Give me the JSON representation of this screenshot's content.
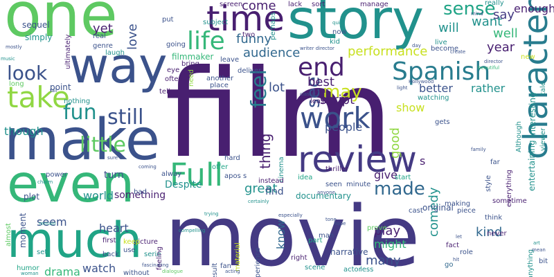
{
  "palette": {
    "dark_purple": "#481f70",
    "purple": "#443a83",
    "indigo": "#3b528b",
    "blue": "#31688e",
    "teal_blue": "#287c8e",
    "teal": "#21918c",
    "green_teal": "#20a486",
    "green": "#35b779",
    "light_green": "#5ec962",
    "lime": "#90d743",
    "yellow_green": "#c8e020",
    "background": "#ffffff"
  },
  "words": [
    {
      "text": "film",
      "color": "dark_purple"
    },
    {
      "text": "movie",
      "color": "purple"
    },
    {
      "text": "one",
      "color": "light_green"
    },
    {
      "text": "story",
      "color": "teal"
    },
    {
      "text": "make",
      "color": "indigo"
    },
    {
      "text": "way",
      "color": "indigo"
    },
    {
      "text": "even",
      "color": "green"
    },
    {
      "text": "much",
      "color": "green_teal"
    },
    {
      "text": "character",
      "color": "teal_blue"
    },
    {
      "text": "review",
      "color": "purple"
    },
    {
      "text": "Full",
      "color": "green"
    },
    {
      "text": "time",
      "color": "dark_purple"
    },
    {
      "text": "work",
      "color": "indigo"
    },
    {
      "text": "Spanish",
      "color": "teal_blue"
    },
    {
      "text": "life",
      "color": "green"
    },
    {
      "text": "take",
      "color": "lime"
    },
    {
      "text": "end",
      "color": "dark_purple"
    },
    {
      "text": "sense",
      "color": "green_teal"
    },
    {
      "text": "feel",
      "color": "teal_blue"
    },
    {
      "text": "fun",
      "color": "teal"
    },
    {
      "text": "look",
      "color": "indigo"
    },
    {
      "text": "still",
      "color": "indigo"
    },
    {
      "text": "see",
      "color": "indigo"
    },
    {
      "text": "little",
      "color": "light_green"
    },
    {
      "text": "made",
      "color": "blue"
    },
    {
      "text": "may",
      "color": "yellow_green"
    },
    {
      "text": "say",
      "color": "purple"
    },
    {
      "text": "enough",
      "color": "dark_purple"
    },
    {
      "text": "performance",
      "color": "yellow_green"
    },
    {
      "text": "audience",
      "color": "blue"
    },
    {
      "text": "come",
      "color": "dark_purple"
    },
    {
      "text": "funny",
      "color": "blue"
    },
    {
      "text": "love",
      "color": "indigo"
    },
    {
      "text": "yet",
      "color": "dark_purple"
    },
    {
      "text": "best",
      "color": "dark_purple"
    },
    {
      "text": "script",
      "color": "dark_purple"
    },
    {
      "text": "lot",
      "color": "indigo"
    },
    {
      "text": "people",
      "color": "indigo"
    },
    {
      "text": "year",
      "color": "dark_purple"
    },
    {
      "text": "well",
      "color": "green"
    },
    {
      "text": "want",
      "color": "teal"
    },
    {
      "text": "will",
      "color": "teal"
    },
    {
      "text": "better",
      "color": "indigo"
    },
    {
      "text": "rather",
      "color": "teal"
    },
    {
      "text": "great",
      "color": "teal"
    },
    {
      "text": "thing",
      "color": "dark_purple"
    },
    {
      "text": "good",
      "color": "lime"
    },
    {
      "text": "show",
      "color": "yellow_green"
    },
    {
      "text": "s",
      "color": "dark_purple"
    },
    {
      "text": "give",
      "color": "dark_purple"
    },
    {
      "text": "play",
      "color": "dark_purple"
    },
    {
      "text": "might",
      "color": "green"
    },
    {
      "text": "kind",
      "color": "blue"
    },
    {
      "text": "comedy",
      "color": "teal"
    },
    {
      "text": "many",
      "color": "indigo"
    },
    {
      "text": "know",
      "color": "blue"
    },
    {
      "text": "seem",
      "color": "indigo"
    },
    {
      "text": "heart",
      "color": "indigo"
    },
    {
      "text": "watch",
      "color": "indigo"
    },
    {
      "text": "drama",
      "color": "green"
    },
    {
      "text": "world",
      "color": "teal"
    },
    {
      "text": "Despite",
      "color": "teal"
    },
    {
      "text": "something",
      "color": "dark_purple"
    },
    {
      "text": "find",
      "color": "indigo"
    },
    {
      "text": "turn",
      "color": "indigo"
    },
    {
      "text": "though",
      "color": "teal"
    },
    {
      "text": "interesting",
      "color": "teal"
    },
    {
      "text": "entertaining",
      "color": "teal"
    },
    {
      "text": "documentary",
      "color": "teal"
    },
    {
      "text": "original",
      "color": "indigo"
    },
    {
      "text": "narrative",
      "color": "indigo"
    },
    {
      "text": "moment",
      "color": "indigo"
    },
    {
      "text": "plot",
      "color": "indigo"
    },
    {
      "text": "point",
      "color": "indigo"
    },
    {
      "text": "filmmaker",
      "color": "green"
    },
    {
      "text": "genre",
      "color": "indigo"
    },
    {
      "text": "real",
      "color": "indigo"
    },
    {
      "text": "simply",
      "color": "teal"
    },
    {
      "text": "sequel",
      "color": "indigo"
    },
    {
      "text": "ultimately",
      "color": "dark_purple"
    },
    {
      "text": "laugh",
      "color": "teal"
    },
    {
      "text": "going",
      "color": "indigo"
    },
    {
      "text": "put",
      "color": "indigo"
    },
    {
      "text": "bring",
      "color": "dark_purple"
    },
    {
      "text": "eye",
      "color": "dark_purple"
    },
    {
      "text": "often",
      "color": "dark_purple"
    },
    {
      "text": "long",
      "color": "light_green"
    },
    {
      "text": "nothing",
      "color": "teal"
    },
    {
      "text": "tell",
      "color": "dark_purple"
    },
    {
      "text": "need",
      "color": "lime"
    },
    {
      "text": "place",
      "color": "indigo"
    },
    {
      "text": "another",
      "color": "indigo"
    },
    {
      "text": "deliver",
      "color": "indigo"
    },
    {
      "text": "leave",
      "color": "indigo"
    },
    {
      "text": "two",
      "color": "dark_purple"
    },
    {
      "text": "subject",
      "color": "teal"
    },
    {
      "text": "screen",
      "color": "dark_purple"
    },
    {
      "text": "perhaps",
      "color": "teal"
    },
    {
      "text": "lack",
      "color": "dark_purple"
    },
    {
      "text": "sort",
      "color": "dark_purple"
    },
    {
      "text": "kid",
      "color": "teal"
    },
    {
      "text": "now",
      "color": "indigo"
    },
    {
      "text": "manage",
      "color": "dark_purple"
    },
    {
      "text": "really",
      "color": "teal"
    },
    {
      "text": "live",
      "color": "teal"
    },
    {
      "text": "become",
      "color": "indigo"
    },
    {
      "text": "new",
      "color": "yellow_green"
    },
    {
      "text": "star",
      "color": "dark_purple"
    },
    {
      "text": "least",
      "color": "dark_purple"
    },
    {
      "text": "hard",
      "color": "indigo"
    },
    {
      "text": "offer",
      "color": "green_teal"
    },
    {
      "text": "apos s",
      "color": "indigo"
    },
    {
      "text": "cinema",
      "color": "teal"
    },
    {
      "text": "thriller",
      "color": "dark_purple"
    },
    {
      "text": "watching",
      "color": "teal"
    },
    {
      "text": "gets",
      "color": "indigo"
    },
    {
      "text": "Although",
      "color": "teal"
    },
    {
      "text": "style",
      "color": "indigo"
    },
    {
      "text": "far",
      "color": "indigo"
    },
    {
      "text": "viewer",
      "color": "teal"
    },
    {
      "text": "tale",
      "color": "teal"
    },
    {
      "text": "power",
      "color": "indigo"
    },
    {
      "text": "bad",
      "color": "indigo"
    },
    {
      "text": "alway",
      "color": "indigo"
    },
    {
      "text": "instead",
      "color": "dark_purple"
    },
    {
      "text": "idea",
      "color": "green_teal"
    },
    {
      "text": "seen",
      "color": "indigo"
    },
    {
      "text": "minute",
      "color": "indigo"
    },
    {
      "text": "start",
      "color": "green_teal"
    },
    {
      "text": "everything",
      "color": "dark_purple"
    },
    {
      "text": "sometime",
      "color": "dark_purple"
    },
    {
      "text": "think",
      "color": "indigo"
    },
    {
      "text": "first",
      "color": "dark_purple"
    },
    {
      "text": "back",
      "color": "indigo"
    },
    {
      "text": "almost",
      "color": "light_green"
    },
    {
      "text": "set",
      "color": "teal"
    },
    {
      "text": "picture",
      "color": "dark_purple"
    },
    {
      "text": "keep",
      "color": "yellow_green"
    },
    {
      "text": "use",
      "color": "indigo"
    },
    {
      "text": "serie",
      "color": "teal"
    },
    {
      "text": "feeling",
      "color": "dark_purple"
    },
    {
      "text": "humor",
      "color": "green_teal"
    },
    {
      "text": "without",
      "color": "indigo"
    },
    {
      "text": "result",
      "color": "indigo"
    },
    {
      "text": "fan",
      "color": "indigo"
    },
    {
      "text": "material",
      "color": "yellow_green"
    },
    {
      "text": "experience",
      "color": "indigo"
    },
    {
      "text": "man",
      "color": "indigo"
    },
    {
      "text": "prove",
      "color": "light_green"
    },
    {
      "text": "cast",
      "color": "indigo"
    },
    {
      "text": "piece",
      "color": "indigo"
    },
    {
      "text": "making",
      "color": "indigo"
    },
    {
      "text": "part",
      "color": "green_teal"
    },
    {
      "text": "right",
      "color": "dark_purple"
    },
    {
      "text": "scene",
      "color": "teal"
    },
    {
      "text": "less",
      "color": "teal"
    },
    {
      "text": "actor",
      "color": "teal"
    },
    {
      "text": "fact",
      "color": "dark_purple"
    },
    {
      "text": "role",
      "color": "indigo"
    },
    {
      "text": "go",
      "color": "blue"
    },
    {
      "text": "never",
      "color": "dark_purple"
    },
    {
      "text": "anything",
      "color": "teal"
    },
    {
      "text": "bit",
      "color": "indigo"
    },
    {
      "text": "compelling",
      "color": "teal"
    },
    {
      "text": "trying",
      "color": "teal"
    },
    {
      "text": "certainly",
      "color": "teal"
    },
    {
      "text": "especially",
      "color": "indigo"
    },
    {
      "text": "hope",
      "color": "indigo"
    },
    {
      "text": "tone",
      "color": "indigo"
    },
    {
      "text": "acting",
      "color": "indigo"
    },
    {
      "text": "fascinating",
      "color": "indigo"
    },
    {
      "text": "woman",
      "color": "teal"
    },
    {
      "text": "dialogue",
      "color": "light_green"
    },
    {
      "text": "anyone",
      "color": "indigo"
    },
    {
      "text": "classic",
      "color": "indigo"
    },
    {
      "text": "family",
      "color": "indigo"
    },
    {
      "text": "coming",
      "color": "indigo"
    },
    {
      "text": "sure",
      "color": "indigo"
    },
    {
      "text": "charm",
      "color": "teal"
    },
    {
      "text": "remain",
      "color": "teal"
    },
    {
      "text": "director",
      "color": "indigo"
    },
    {
      "text": "writer director",
      "color": "indigo"
    },
    {
      "text": "mostly",
      "color": "indigo"
    },
    {
      "text": "music",
      "color": "teal"
    },
    {
      "text": "fail",
      "color": "indigo"
    },
    {
      "text": "quite",
      "color": "teal"
    },
    {
      "text": "day",
      "color": "indigo"
    },
    {
      "text": "mind",
      "color": "indigo"
    },
    {
      "text": "create",
      "color": "indigo"
    },
    {
      "text": "beautiful",
      "color": "green"
    },
    {
      "text": "Hollywood",
      "color": "indigo"
    },
    {
      "text": "light",
      "color": "indigo"
    },
    {
      "text": "art",
      "color": "teal"
    },
    {
      "text": "mean",
      "color": "indigo"
    },
    {
      "text": "hit",
      "color": "indigo"
    },
    {
      "text": "let",
      "color": "indigo"
    }
  ]
}
